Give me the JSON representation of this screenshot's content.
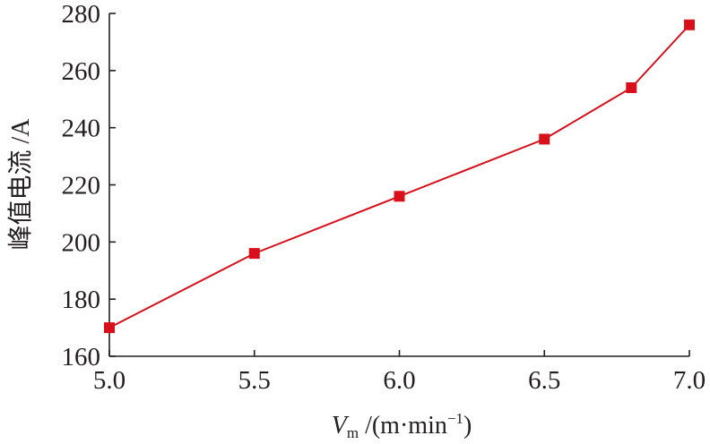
{
  "chart_data": {
    "type": "line",
    "title": "",
    "xlabel": {
      "variable": "V",
      "subscript": "m",
      "unit_prefix": " /(m·min",
      "exponent": "−1",
      "unit_suffix": ")"
    },
    "ylabel": "峰值电流 /A",
    "xlim": [
      5.0,
      7.0
    ],
    "ylim": [
      160,
      280
    ],
    "xticks": [
      "5.0",
      "5.5",
      "6.0",
      "6.5",
      "7.0"
    ],
    "yticks": [
      "160",
      "180",
      "200",
      "220",
      "240",
      "260",
      "280"
    ],
    "grid": false,
    "legend": "none",
    "series": [
      {
        "color": "#d7101c",
        "marker": "square",
        "x": [
          5.0,
          5.5,
          6.0,
          6.5,
          6.8,
          7.0
        ],
        "y": [
          170,
          196,
          216,
          236,
          254,
          276
        ]
      }
    ]
  }
}
